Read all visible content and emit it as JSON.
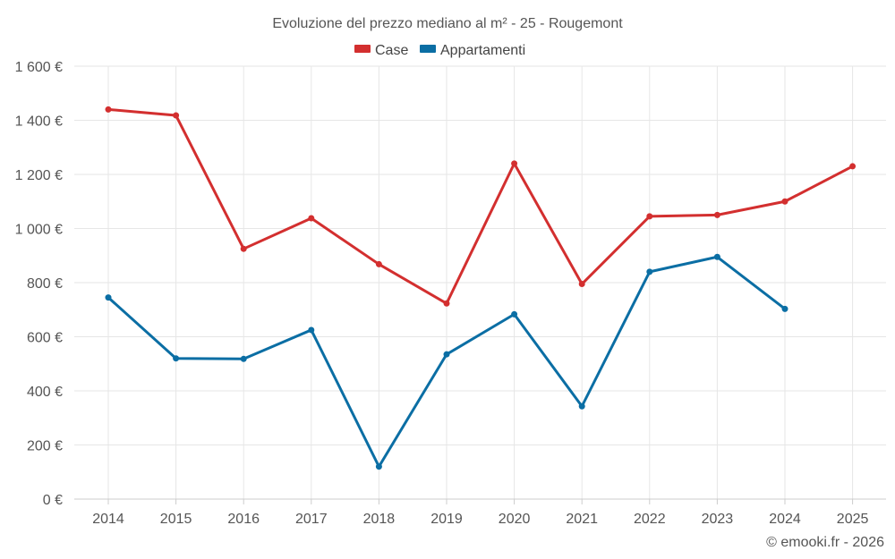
{
  "chart_data": {
    "type": "line",
    "title": "Evoluzione del prezzo mediano al m² - 25 - Rougemont",
    "categories": [
      "2014",
      "2015",
      "2016",
      "2017",
      "2018",
      "2019",
      "2020",
      "2021",
      "2022",
      "2023",
      "2024",
      "2025"
    ],
    "series": [
      {
        "name": "Case",
        "color": "#d32f2f",
        "values": [
          1440,
          1418,
          925,
          1038,
          868,
          723,
          1240,
          795,
          1045,
          1050,
          1100,
          1230
        ]
      },
      {
        "name": "Appartamenti",
        "color": "#0b6ea4",
        "values": [
          745,
          520,
          518,
          625,
          120,
          535,
          683,
          343,
          840,
          895,
          703,
          null
        ]
      }
    ],
    "ylim": [
      0,
      1600
    ],
    "yticks": [
      {
        "value": 0,
        "label": "0 €"
      },
      {
        "value": 200,
        "label": "200 €"
      },
      {
        "value": 400,
        "label": "400 €"
      },
      {
        "value": 600,
        "label": "600 €"
      },
      {
        "value": 800,
        "label": "800 €"
      },
      {
        "value": 1000,
        "label": "1 000 €"
      },
      {
        "value": 1200,
        "label": "1 200 €"
      },
      {
        "value": 1400,
        "label": "1 400 €"
      },
      {
        "value": 1600,
        "label": "1 600 €"
      }
    ],
    "grid": true,
    "legend_position": "top-center",
    "credit": "© emooki.fr - 2026"
  }
}
